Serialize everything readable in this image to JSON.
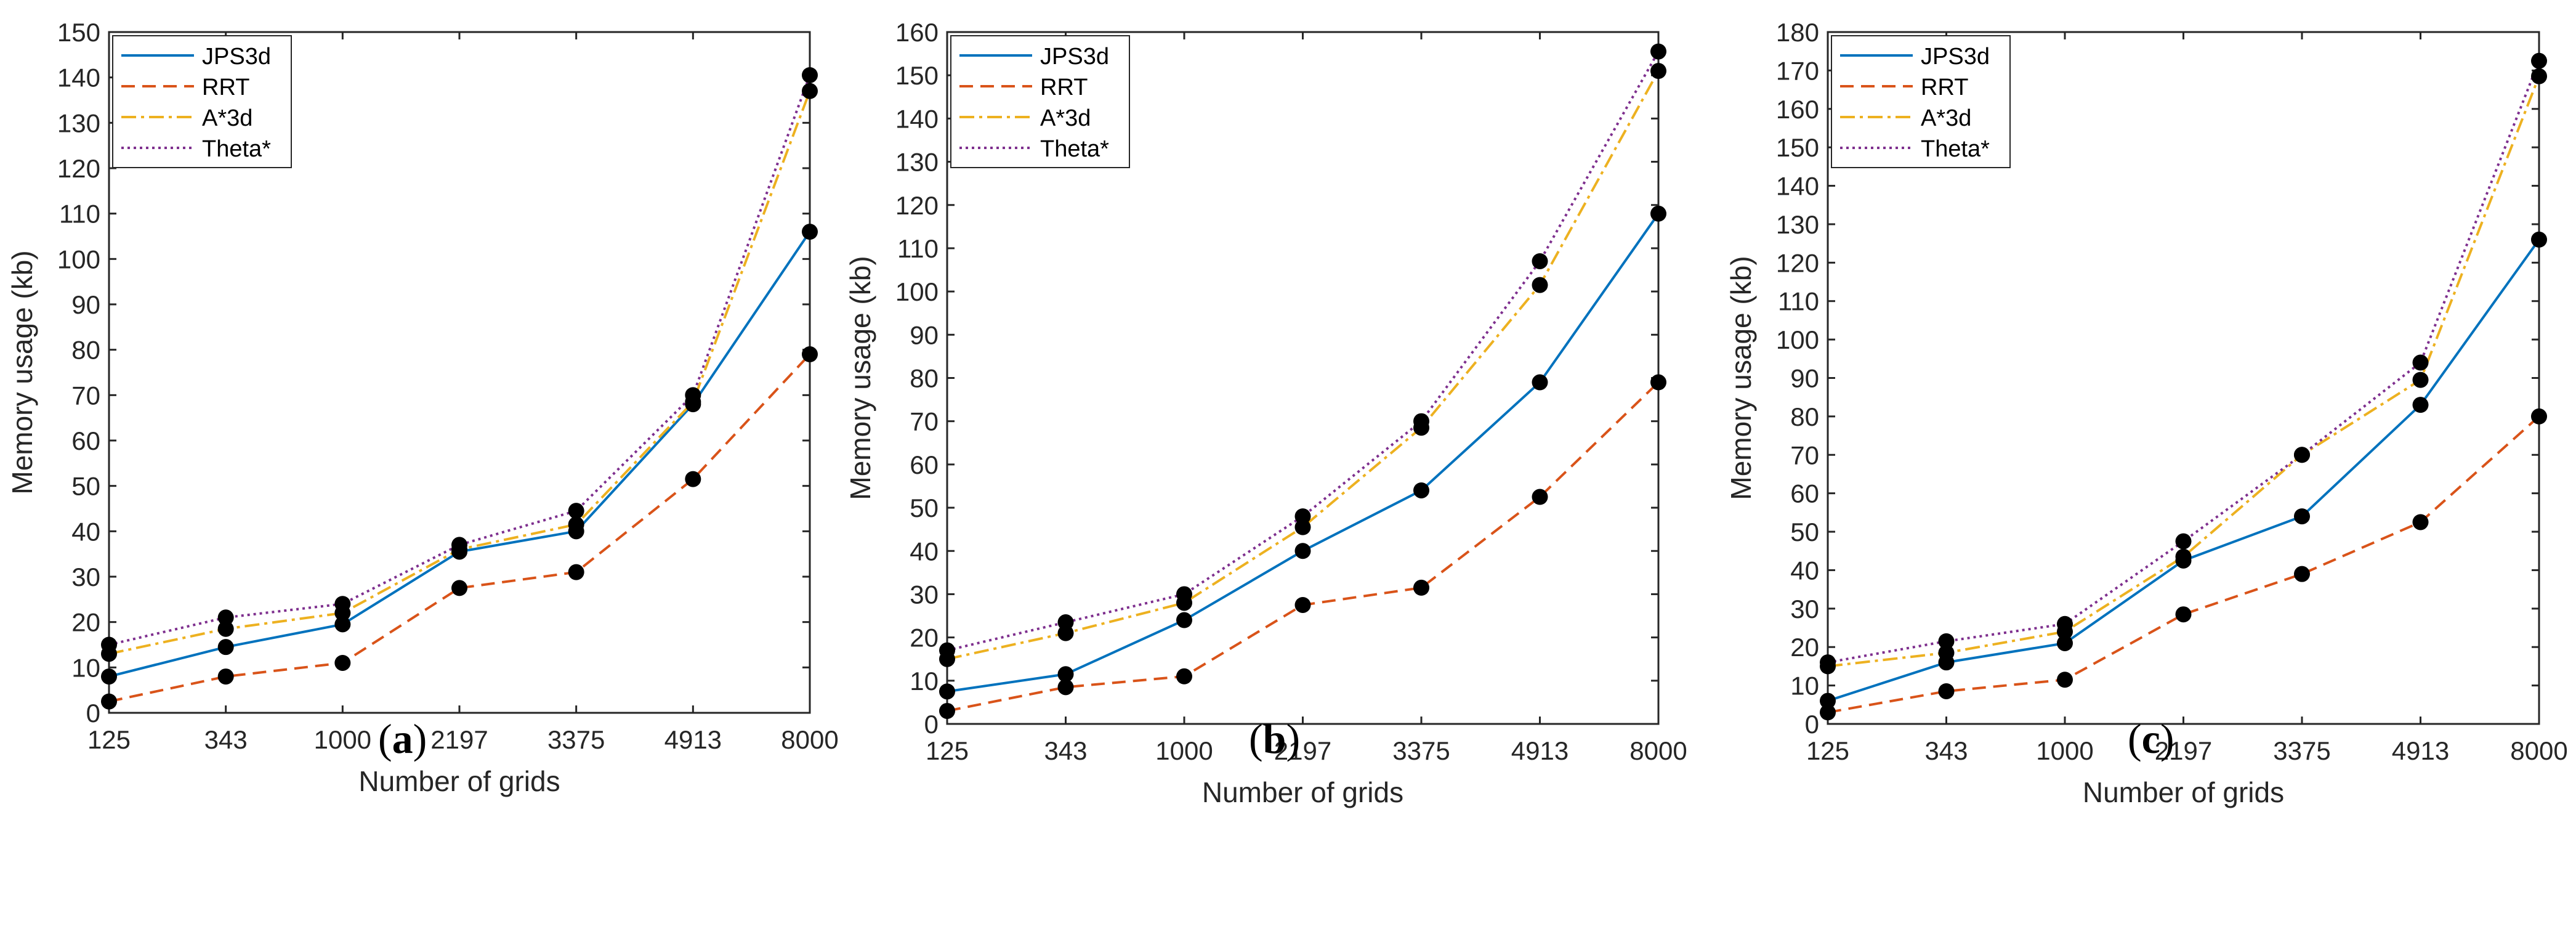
{
  "chart_data": [
    {
      "type": "line",
      "panel_label": "a",
      "categories": [
        "125",
        "343",
        "1000",
        "2197",
        "3375",
        "4913",
        "8000"
      ],
      "xlabel": "Number of grids",
      "ylabel": "Memory usage (kb)",
      "ylim": [
        0,
        150
      ],
      "yticks": [
        "0",
        "10",
        "20",
        "30",
        "40",
        "50",
        "60",
        "70",
        "80",
        "90",
        "100",
        "110",
        "120",
        "130",
        "140",
        "150"
      ],
      "legend_position": "top-left",
      "series": [
        {
          "name": "JPS3d",
          "color": "#0072BD",
          "values": [
            8,
            14.5,
            19.5,
            35.5,
            40,
            68,
            106
          ]
        },
        {
          "name": "RRT",
          "color": "#D95319",
          "values": [
            2.5,
            8,
            11,
            27.5,
            31,
            51.5,
            79
          ]
        },
        {
          "name": "A*3d",
          "color": "#EDB120",
          "values": [
            13,
            18.5,
            22,
            36,
            41.5,
            68.5,
            137
          ]
        },
        {
          "name": "Theta*",
          "color": "#7E2F8E",
          "values": [
            15,
            21,
            24,
            37,
            44.5,
            70,
            140.5
          ]
        }
      ]
    },
    {
      "type": "line",
      "panel_label": "b",
      "categories": [
        "125",
        "343",
        "1000",
        "2197",
        "3375",
        "4913",
        "8000"
      ],
      "xlabel": "Number of grids",
      "ylabel": "Memory usage (kb)",
      "ylim": [
        0,
        160
      ],
      "yticks": [
        "0",
        "10",
        "20",
        "30",
        "40",
        "50",
        "60",
        "70",
        "80",
        "90",
        "100",
        "110",
        "120",
        "130",
        "140",
        "150",
        "160"
      ],
      "legend_position": "top-left",
      "series": [
        {
          "name": "JPS3d",
          "color": "#0072BD",
          "values": [
            7.5,
            11.5,
            24,
            40,
            54,
            79,
            118
          ]
        },
        {
          "name": "RRT",
          "color": "#D95319",
          "values": [
            3,
            8.5,
            11,
            27.5,
            31.5,
            52.5,
            79
          ]
        },
        {
          "name": "A*3d",
          "color": "#EDB120",
          "values": [
            15,
            21,
            28,
            45.5,
            68.5,
            101.5,
            151
          ]
        },
        {
          "name": "Theta*",
          "color": "#7E2F8E",
          "values": [
            17,
            23.5,
            30,
            48,
            70,
            107,
            155.5
          ]
        }
      ]
    },
    {
      "type": "line",
      "panel_label": "c",
      "categories": [
        "125",
        "343",
        "1000",
        "2197",
        "3375",
        "4913",
        "8000"
      ],
      "xlabel": "Number of grids",
      "ylabel": "Memory usage (kb)",
      "ylim": [
        0,
        180
      ],
      "yticks": [
        "0",
        "10",
        "20",
        "30",
        "40",
        "50",
        "60",
        "70",
        "80",
        "90",
        "100",
        "110",
        "120",
        "130",
        "140",
        "150",
        "160",
        "170",
        "180"
      ],
      "legend_position": "top-left",
      "series": [
        {
          "name": "JPS3d",
          "color": "#0072BD",
          "values": [
            6,
            16,
            21,
            42.5,
            54,
            83,
            126
          ]
        },
        {
          "name": "RRT",
          "color": "#D95319",
          "values": [
            3,
            8.5,
            11.5,
            28.5,
            39,
            52.5,
            80
          ]
        },
        {
          "name": "A*3d",
          "color": "#EDB120",
          "values": [
            15,
            18.5,
            24,
            43.5,
            70,
            89.5,
            168.5
          ]
        },
        {
          "name": "Theta*",
          "color": "#7E2F8E",
          "values": [
            16,
            21.5,
            26,
            47.5,
            70,
            94,
            172.5
          ]
        }
      ]
    }
  ]
}
